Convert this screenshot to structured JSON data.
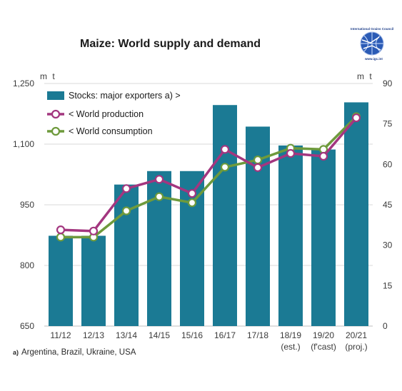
{
  "page_title": "Maize: World supply and demand",
  "logo": {
    "org": "International Grains Council",
    "url": "www.igc.int"
  },
  "footnote": {
    "marker": "a)",
    "text": "Argentina, Brazil, Ukraine, USA"
  },
  "colors": {
    "bars": "#1b7a94",
    "production": "#a3367f",
    "consumption": "#6e9a3c",
    "grid": "#d9d9d9"
  },
  "chart_data": {
    "type": "bar",
    "title": "Maize: World supply and demand",
    "categories": [
      "11/12",
      "12/13",
      "13/14",
      "14/15",
      "15/16",
      "16/17",
      "17/18",
      "18/19",
      "19/20",
      "20/21"
    ],
    "category_sublabels": [
      "",
      "",
      "",
      "",
      "",
      "",
      "",
      "(est.)",
      "(f'cast)",
      "(proj.)"
    ],
    "y_left": {
      "unit": "m t",
      "min": 650,
      "max": 1250,
      "ticks": [
        650,
        800,
        950,
        1100,
        1250
      ],
      "tick_labels": [
        "650",
        "800",
        "950",
        "1,100",
        "1,250"
      ]
    },
    "y_right": {
      "unit": "m t",
      "min": 0,
      "max": 90,
      "ticks": [
        0,
        15,
        30,
        45,
        60,
        75,
        90
      ],
      "tick_labels": [
        "0",
        "15",
        "30",
        "45",
        "60",
        "75",
        "90"
      ]
    },
    "grid": true,
    "legend_position": "top-left",
    "series": [
      {
        "name": "Stocks: major exporters a) >",
        "type": "bar",
        "axis": "right",
        "values": [
          33.5,
          33.5,
          52.5,
          57.5,
          57.5,
          82,
          74,
          67,
          65.5,
          83
        ]
      },
      {
        "name": "< World production",
        "type": "line",
        "axis": "left",
        "values": [
          888,
          885,
          990,
          1013,
          978,
          1087,
          1042,
          1077,
          1070,
          1165
        ]
      },
      {
        "name": "< World consumption",
        "type": "line",
        "axis": "left",
        "values": [
          870,
          870,
          935,
          970,
          955,
          1043,
          1061,
          1090,
          1087,
          1168
        ]
      }
    ]
  }
}
